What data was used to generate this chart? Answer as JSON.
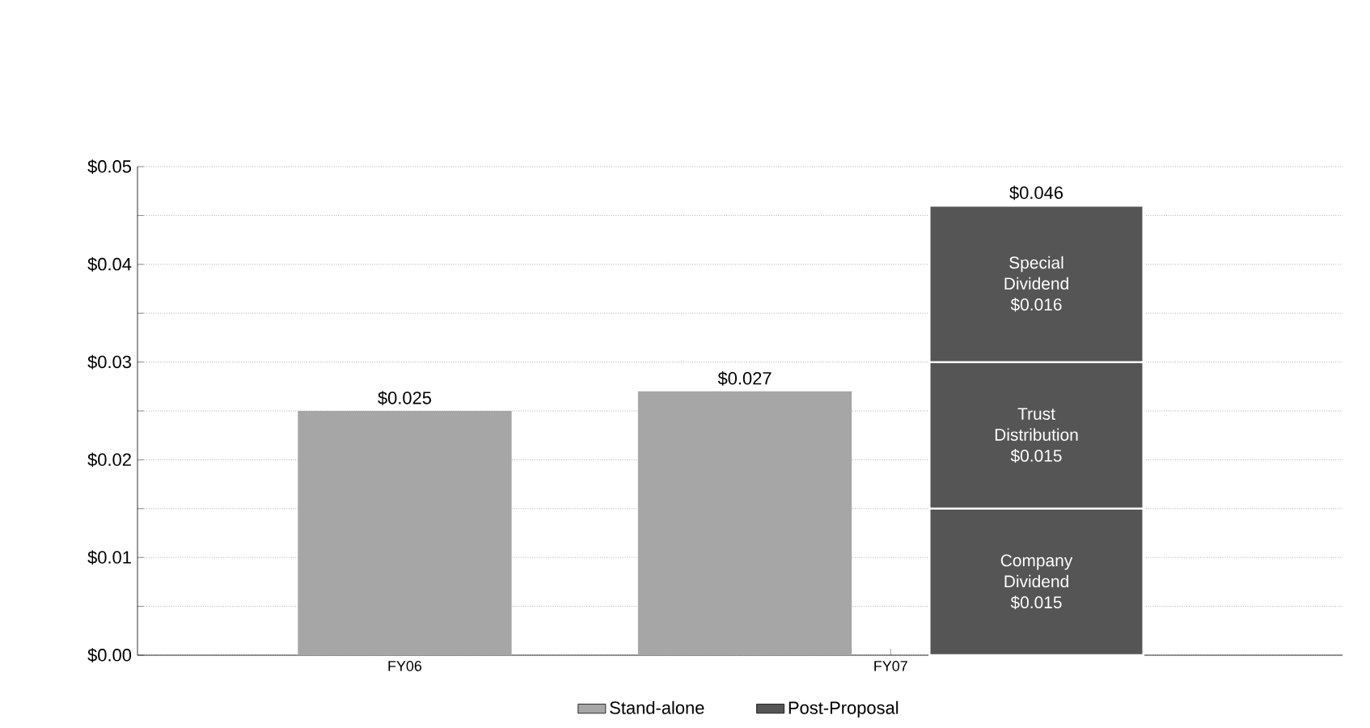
{
  "chart_data": {
    "type": "bar",
    "categories": [
      "FY06",
      "FY07"
    ],
    "series": [
      {
        "name": "Stand-alone",
        "color": "#a6a6a6",
        "values": [
          0.025,
          0.027
        ],
        "value_labels": [
          "$0.025",
          "$0.027"
        ]
      },
      {
        "name": "Post-Proposal",
        "color": "#555555",
        "values": [
          null,
          0.015
        ],
        "base": [
          null,
          0
        ],
        "value_labels": [
          null,
          "Company Dividend $0.015"
        ]
      },
      {
        "color": "#555555",
        "values": [
          null,
          0.015
        ],
        "base": [
          null,
          0.015
        ],
        "value_labels": [
          null,
          "Trust Distribution $0.015"
        ]
      },
      {
        "color": "#555555",
        "values": [
          null,
          0.016
        ],
        "base": [
          null,
          0.03
        ],
        "value_labels": [
          null,
          "Special Dividend $0.016"
        ]
      }
    ],
    "annotations": [
      "$0.046"
    ],
    "ylim": [
      0,
      0.05
    ],
    "yticks": [
      {
        "value": 0,
        "label": "$0.00"
      },
      {
        "value": 0.005,
        "label": null
      },
      {
        "value": 0.01,
        "label": "$0.01"
      },
      {
        "value": 0.015,
        "label": null
      },
      {
        "value": 0.02,
        "label": "$0.02"
      },
      {
        "value": 0.025,
        "label": null
      },
      {
        "value": 0.03,
        "label": "$0.03"
      },
      {
        "value": 0.035,
        "label": null
      },
      {
        "value": 0.04,
        "label": "$0.04"
      },
      {
        "value": 0.045,
        "label": null
      },
      {
        "value": 0.05,
        "label": "$0.05"
      }
    ],
    "grid": "y",
    "legend": "bottom"
  }
}
